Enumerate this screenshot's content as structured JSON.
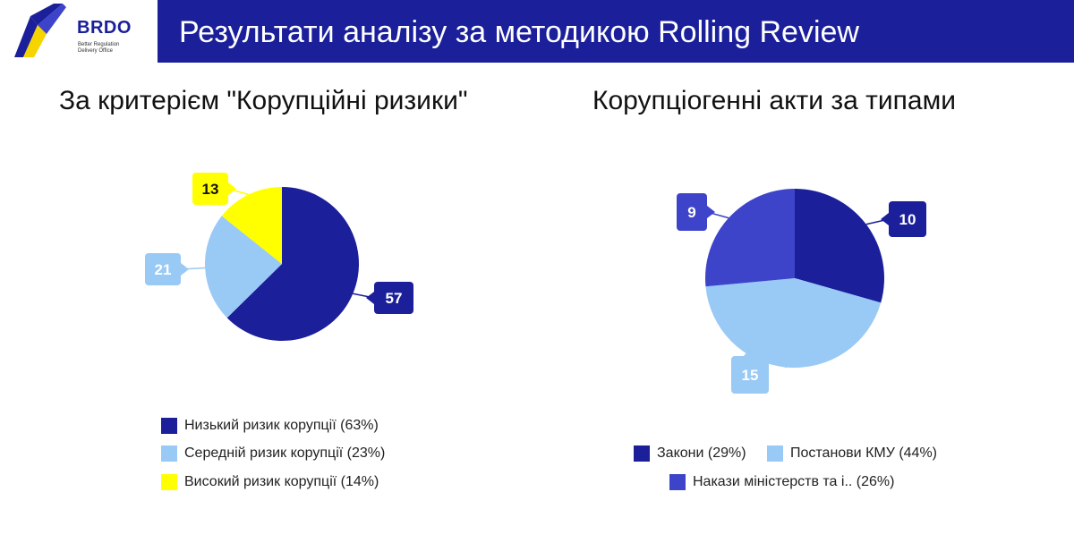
{
  "header": {
    "title": "Результати аналізу за методикою Rolling Review",
    "logo_name": "BRDO",
    "logo_subtitle_line1": "Better Regulation",
    "logo_subtitle_line2": "Delivery Office",
    "bar_color": "#1b1f9a"
  },
  "chart_data": [
    {
      "type": "pie",
      "title": "За критерієм \"Корупційні ризики\"",
      "categories": [
        "Низький ризик корупції",
        "Середній ризик корупції",
        "Високий ризик корупції"
      ],
      "values": [
        57,
        21,
        13
      ],
      "percents": [
        "63%",
        "23%",
        "14%"
      ],
      "legend_labels": [
        "Низький ризик корупції (63%)",
        "Середній ризик корупції (23%)",
        "Високий ризик корупції (14%)"
      ],
      "colors": [
        "#1b1f9a",
        "#99c9f5",
        "#ffff00"
      ],
      "data_label_colors": [
        "#ffffff",
        "#ffffff",
        "#111111"
      ],
      "legend_position": "bottom"
    },
    {
      "type": "pie",
      "title": "Корупціогенні акти за типами",
      "categories": [
        "Закони",
        "Постанови КМУ",
        "Накази міністерств та і.."
      ],
      "values": [
        10,
        15,
        9
      ],
      "percents": [
        "29%",
        "44%",
        "26%"
      ],
      "legend_labels": [
        "Закони (29%)",
        "Постанови КМУ (44%)",
        "Накази міністерств та і.. (26%)"
      ],
      "colors": [
        "#1b1f9a",
        "#99c9f5",
        "#3d44c9"
      ],
      "data_label_colors": [
        "#ffffff",
        "#ffffff",
        "#ffffff"
      ],
      "legend_position": "bottom"
    }
  ]
}
